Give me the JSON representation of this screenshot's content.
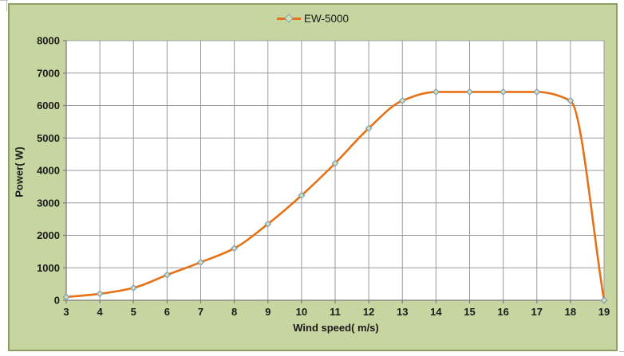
{
  "chart_data": {
    "type": "line",
    "title": "",
    "xlabel": "Wind speed( m/s)",
    "ylabel": "Power( W)",
    "xlim": [
      3,
      19
    ],
    "ylim": [
      0,
      8000
    ],
    "x_ticks": [
      3,
      4,
      5,
      6,
      7,
      8,
      9,
      10,
      11,
      12,
      13,
      14,
      15,
      16,
      17,
      18,
      19
    ],
    "y_ticks": [
      0,
      1000,
      2000,
      3000,
      4000,
      5000,
      6000,
      7000,
      8000
    ],
    "grid": true,
    "legend_position": "top-center",
    "smooth": true,
    "series": [
      {
        "name": "EW-5000",
        "x": [
          3,
          4,
          5,
          6,
          7,
          8,
          9,
          10,
          11,
          12,
          13,
          14,
          15,
          16,
          17,
          18,
          19
        ],
        "values": [
          100,
          200,
          380,
          780,
          1170,
          1600,
          2350,
          3230,
          4220,
          5300,
          6150,
          6420,
          6420,
          6420,
          6420,
          6150,
          0
        ]
      }
    ]
  },
  "legend": {
    "series_label": "EW-5000"
  },
  "axes": {
    "x_title": "Wind speed( m/s)",
    "y_title": "Power( W)"
  },
  "colors": {
    "panel_bg": "#c7d5a0",
    "panel_border": "#8d9f62",
    "plot_bg": "#ffffff",
    "grid": "#9a9a9a",
    "axis": "#7f7f7f",
    "line": "#e67117",
    "marker_fill": "#d2e0b6",
    "marker_stroke": "#7f9db9",
    "text": "#1a1a1a"
  }
}
